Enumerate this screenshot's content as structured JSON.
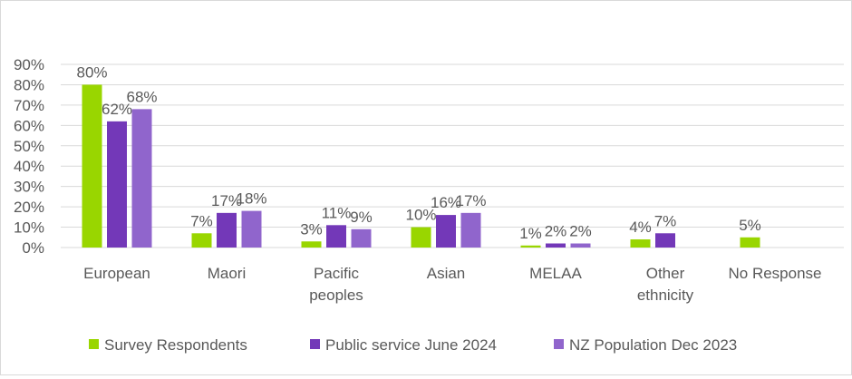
{
  "chart_data": {
    "type": "bar",
    "categories": [
      "European",
      "Maori",
      "Pacific peoples",
      "Asian",
      "MELAA",
      "Other ethnicity",
      "No Response"
    ],
    "category_lines": [
      [
        "European"
      ],
      [
        "Maori"
      ],
      [
        "Pacific",
        "peoples"
      ],
      [
        "Asian"
      ],
      [
        "MELAA"
      ],
      [
        "Other",
        "ethnicity"
      ],
      [
        "No Response"
      ]
    ],
    "series": [
      {
        "name": "Survey Respondents",
        "color": "#99d600",
        "values": [
          80,
          7,
          3,
          10,
          1,
          4,
          5
        ]
      },
      {
        "name": "Public service June 2024",
        "color": "#7338b8",
        "values": [
          62,
          17,
          11,
          16,
          2,
          7,
          null
        ]
      },
      {
        "name": "NZ Population Dec 2023",
        "color": "#9065cc",
        "values": [
          68,
          18,
          9,
          17,
          2,
          null,
          null
        ]
      }
    ],
    "yticks": [
      "0%",
      "10%",
      "20%",
      "30%",
      "40%",
      "50%",
      "60%",
      "70%",
      "80%",
      "90%"
    ],
    "ylim": [
      0,
      90
    ],
    "grid": true,
    "legend": "bottom",
    "data_label_suffix": "%"
  }
}
